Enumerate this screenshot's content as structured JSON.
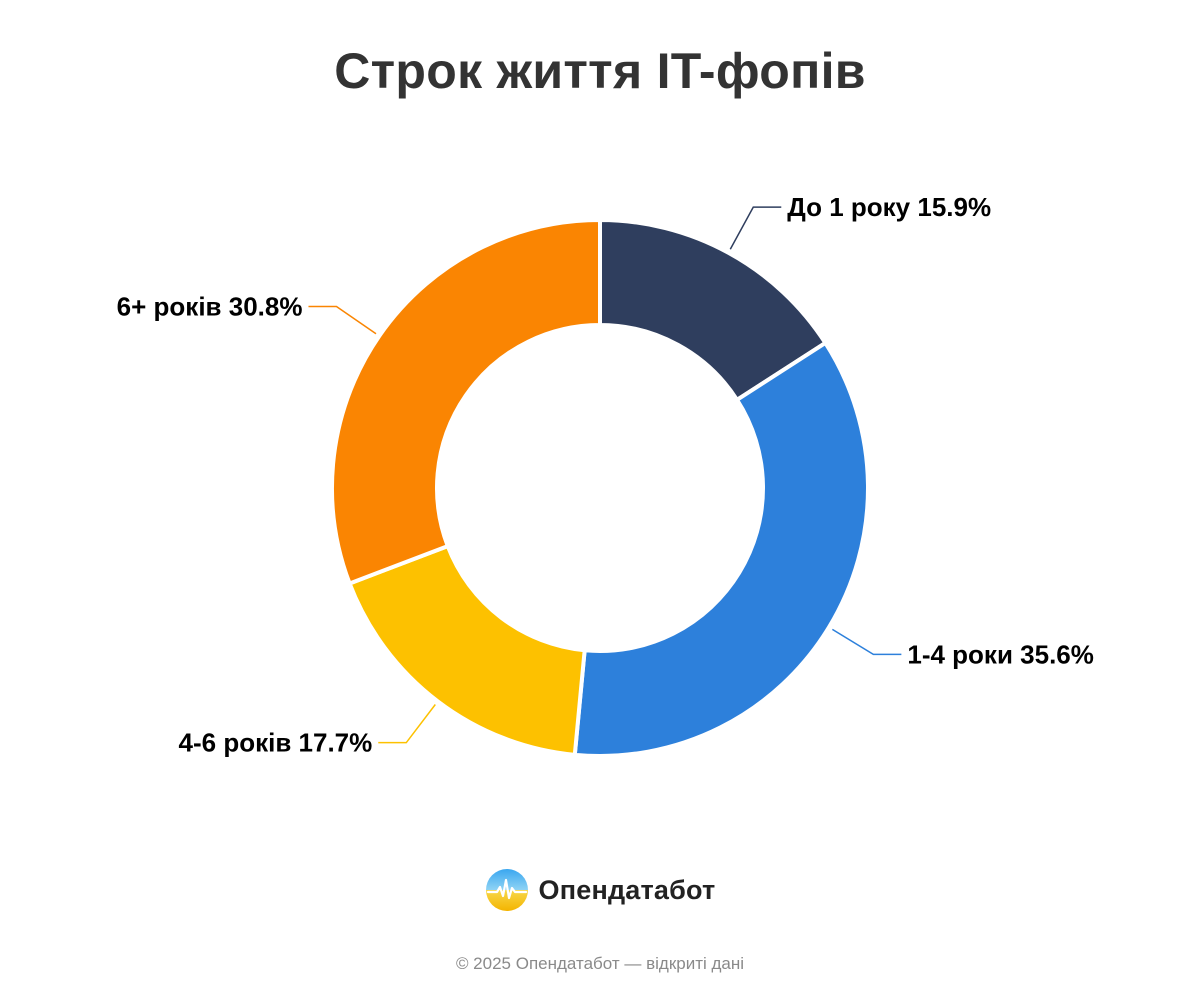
{
  "chart_data": {
    "type": "pie",
    "title": "Строк життя IT-фопів",
    "categories": [
      "До 1 року",
      "1-4 роки",
      "4-6 років",
      "6+ років"
    ],
    "values": [
      15.9,
      35.6,
      17.7,
      30.8
    ],
    "unit": "%",
    "colors": [
      "#2f3e5e",
      "#2d80db",
      "#fdc100",
      "#fa8502"
    ],
    "donut": true,
    "legend": "none"
  },
  "brand": {
    "name": "Опендатабот",
    "logo_icon": "opendatabot-logo-icon"
  },
  "footer": {
    "text": "© 2025 Опендатабот — відкриті дані"
  }
}
